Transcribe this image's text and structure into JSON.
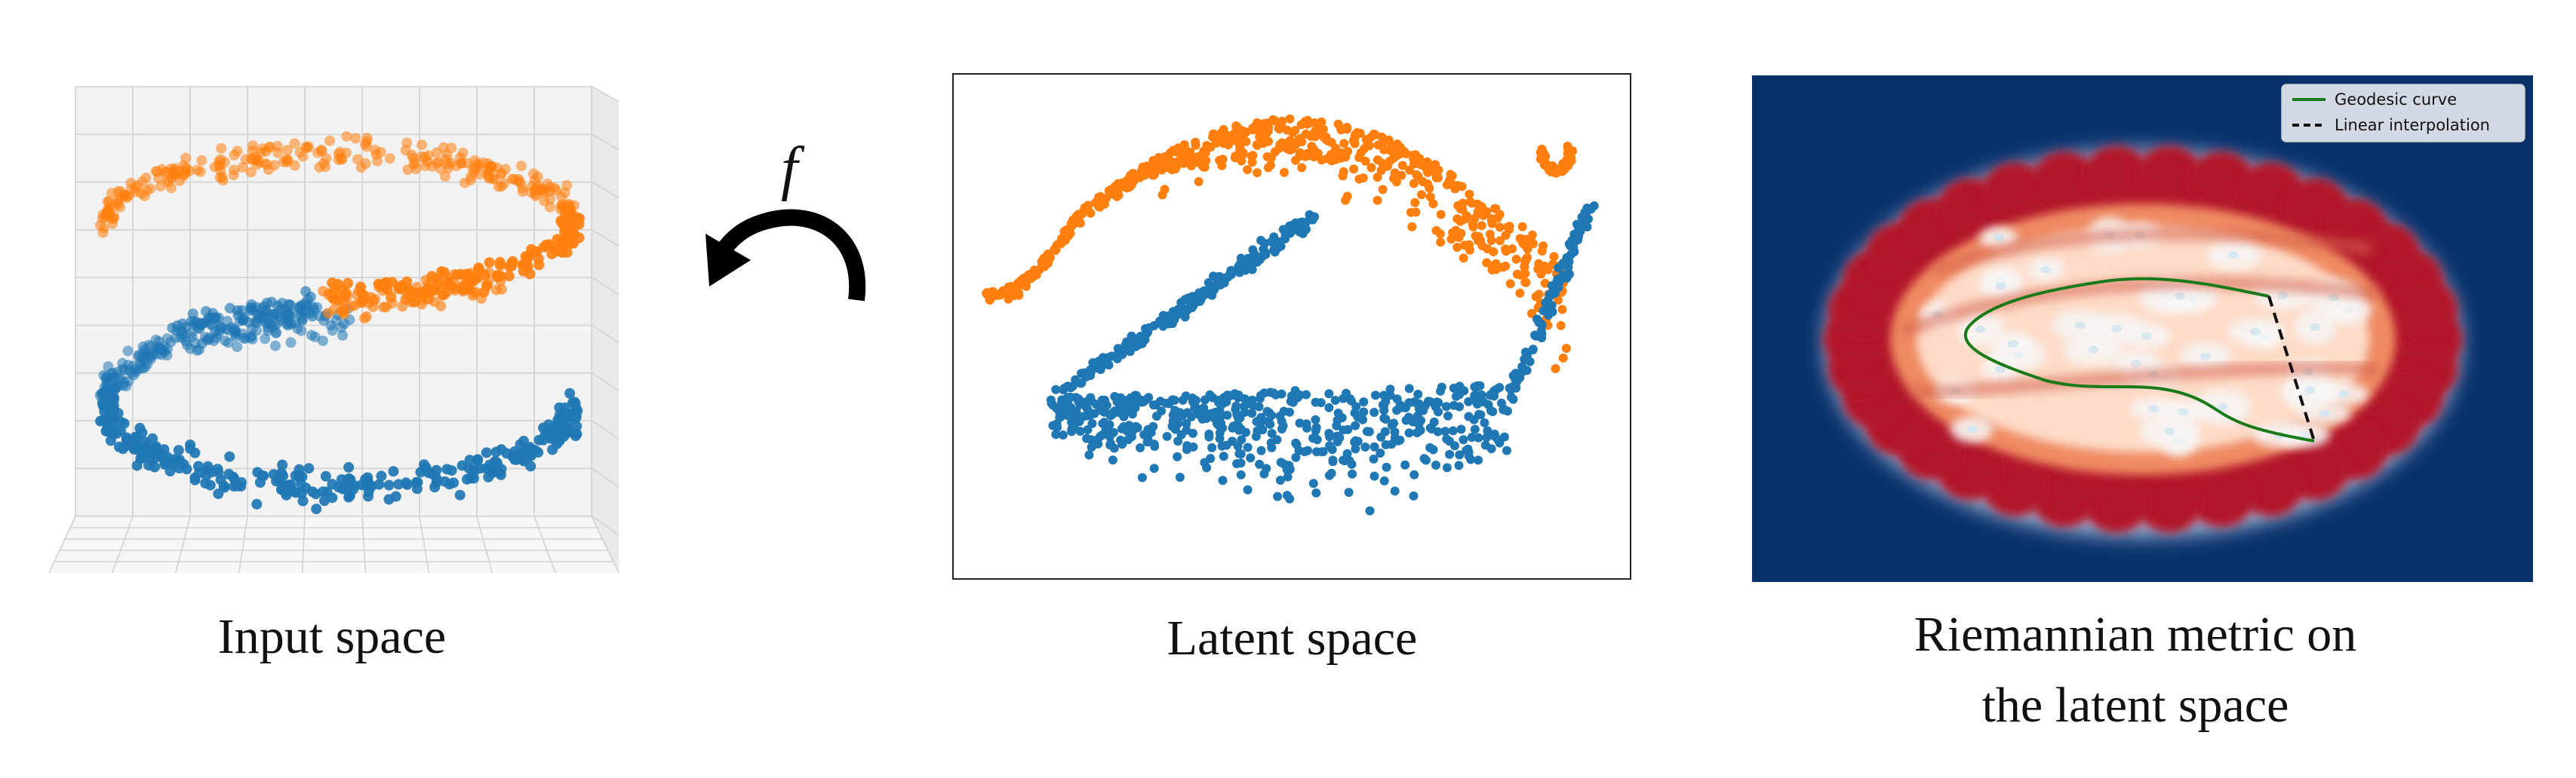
{
  "panels": {
    "input": {
      "caption": "Input space"
    },
    "latent": {
      "caption": "Latent space"
    },
    "metric": {
      "caption_line1": "Riemannian metric on",
      "caption_line2": "the latent space",
      "legend": [
        {
          "label": "Geodesic curve",
          "style": "solid",
          "color": "#1a7a1a"
        },
        {
          "label": "Linear interpolation",
          "style": "dashed",
          "color": "#111111"
        }
      ]
    }
  },
  "arrow": {
    "label": "f"
  },
  "colors": {
    "orange": "#ff7f0e",
    "blue": "#1f77b4",
    "metric_background": "#08306b",
    "metric_high": "#b2182b",
    "geodesic": "#1a7a1a"
  }
}
